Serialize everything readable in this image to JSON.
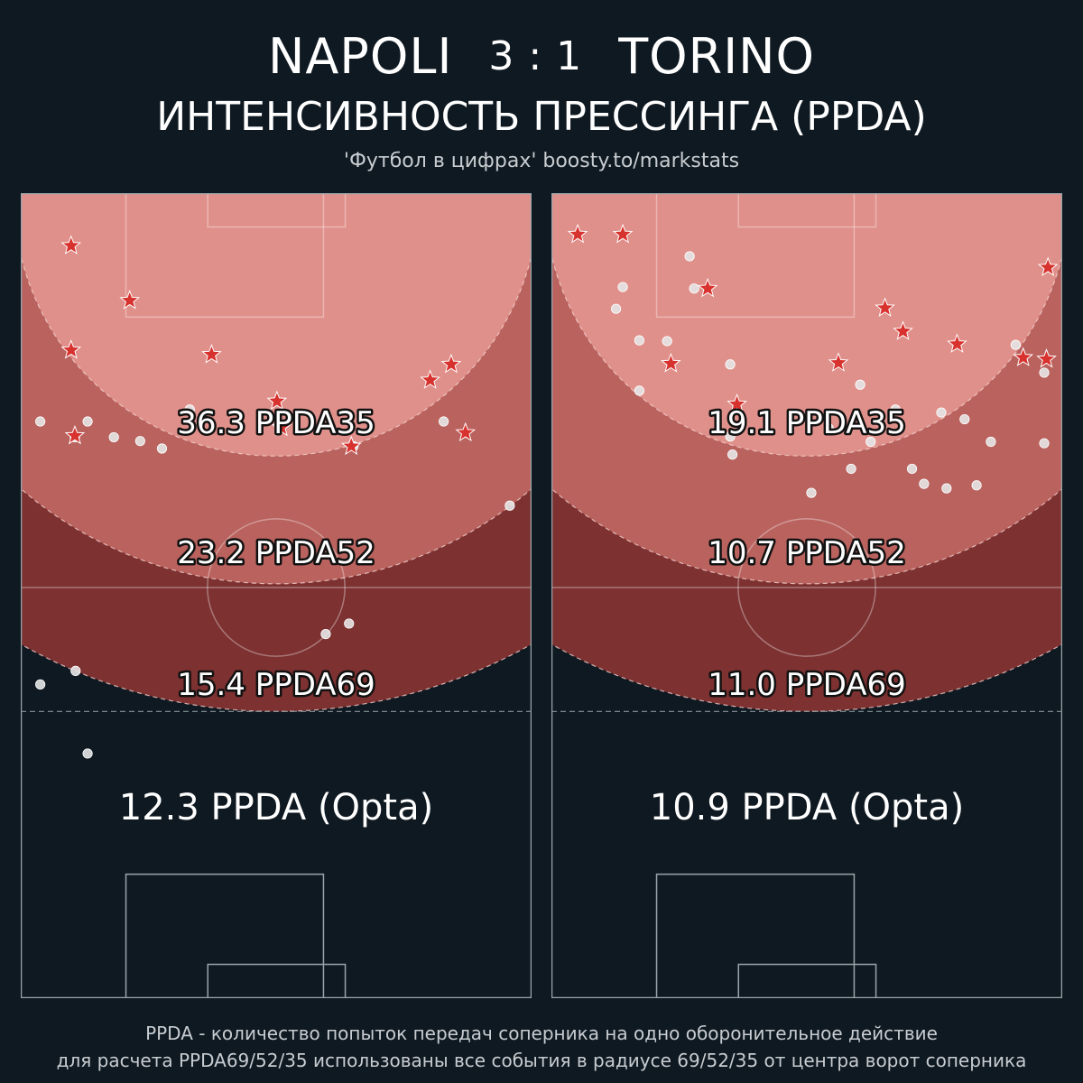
{
  "header": {
    "home_team": "NAPOLI",
    "score": "3 : 1",
    "away_team": "TORINO",
    "subtitle": "ИНТЕНСИВНОСТЬ ПРЕССИНГА (PPDA)",
    "source": "'Футбол в цифрах' boosty.to/markstats"
  },
  "footer": {
    "line1": "PPDA - количество попыток передач соперника на одно оборонительное действие",
    "line2": "для расчета PPDA69/52/35 использованы все события в радиусе 69/52/35 от центра ворот соперника"
  },
  "colors": {
    "background": "#0f1921",
    "zone35": "#e0908a",
    "zone52": "#b9625e",
    "zone69": "#7d3131",
    "star": "#d8322e",
    "dot": "#e6e6e6"
  },
  "chart_data": [
    {
      "type": "scatter",
      "team": "NAPOLI",
      "metrics": {
        "ppda35": "36.3 PPDA35",
        "ppda52": "23.2 PPDA52",
        "ppda69": "15.4 PPDA69",
        "opta": "12.3 PPDA (Opta)"
      },
      "xlim": [
        0,
        68
      ],
      "ylim": [
        0,
        105
      ],
      "stars": [
        {
          "x": 6.7,
          "y": 98.0
        },
        {
          "x": 6.7,
          "y": 84.1
        },
        {
          "x": 7.2,
          "y": 72.7
        },
        {
          "x": 14.5,
          "y": 90.7
        },
        {
          "x": 25.4,
          "y": 83.5
        },
        {
          "x": 34.1,
          "y": 77.3
        },
        {
          "x": 34.7,
          "y": 73.8
        },
        {
          "x": 44.0,
          "y": 71.3
        },
        {
          "x": 54.5,
          "y": 80.1
        },
        {
          "x": 57.3,
          "y": 82.2
        },
        {
          "x": 59.2,
          "y": 73.1
        }
      ],
      "dots": [
        {
          "x": 2.6,
          "y": 74.6
        },
        {
          "x": 8.9,
          "y": 74.6
        },
        {
          "x": 12.4,
          "y": 72.5
        },
        {
          "x": 15.9,
          "y": 72.0
        },
        {
          "x": 18.8,
          "y": 71.0
        },
        {
          "x": 22.5,
          "y": 76.2
        },
        {
          "x": 44.3,
          "y": 71.3
        },
        {
          "x": 56.3,
          "y": 74.6
        },
        {
          "x": 7.2,
          "y": 72.5
        },
        {
          "x": 2.6,
          "y": 39.6
        },
        {
          "x": 7.3,
          "y": 41.4
        },
        {
          "x": 8.9,
          "y": 30.4
        },
        {
          "x": 40.6,
          "y": 46.3
        },
        {
          "x": 43.7,
          "y": 47.7
        },
        {
          "x": 65.1,
          "y": 63.4
        }
      ]
    },
    {
      "type": "scatter",
      "team": "TORINO",
      "metrics": {
        "ppda35": "19.1 PPDA35",
        "ppda52": "10.7 PPDA52",
        "ppda69": "11.0 PPDA69",
        "opta": "10.9 PPDA (Opta)"
      },
      "xlim": [
        0,
        68
      ],
      "ylim": [
        0,
        105
      ],
      "stars": [
        {
          "x": 3.5,
          "y": 99.5
        },
        {
          "x": 9.5,
          "y": 99.5
        },
        {
          "x": 20.8,
          "y": 92.3
        },
        {
          "x": 15.9,
          "y": 82.3
        },
        {
          "x": 38.2,
          "y": 82.4
        },
        {
          "x": 44.4,
          "y": 89.7
        },
        {
          "x": 46.8,
          "y": 86.6
        },
        {
          "x": 54.0,
          "y": 84.9
        },
        {
          "x": 65.9,
          "y": 82.9
        },
        {
          "x": 62.8,
          "y": 83.1
        },
        {
          "x": 66.1,
          "y": 95.1
        },
        {
          "x": 24.7,
          "y": 76.9
        }
      ],
      "dots": [
        {
          "x": 18.4,
          "y": 96.6
        },
        {
          "x": 9.5,
          "y": 92.5
        },
        {
          "x": 19.0,
          "y": 92.3
        },
        {
          "x": 8.6,
          "y": 89.6
        },
        {
          "x": 11.7,
          "y": 85.4
        },
        {
          "x": 15.4,
          "y": 85.3
        },
        {
          "x": 23.8,
          "y": 82.2
        },
        {
          "x": 11.7,
          "y": 78.7
        },
        {
          "x": 41.1,
          "y": 79.5
        },
        {
          "x": 45.8,
          "y": 76.2
        },
        {
          "x": 51.9,
          "y": 75.8
        },
        {
          "x": 55.0,
          "y": 74.9
        },
        {
          "x": 58.5,
          "y": 71.9
        },
        {
          "x": 61.8,
          "y": 84.8
        },
        {
          "x": 65.6,
          "y": 81.1
        },
        {
          "x": 36.9,
          "y": 73.7
        },
        {
          "x": 34.6,
          "y": 65.1
        },
        {
          "x": 23.8,
          "y": 72.6
        },
        {
          "x": 39.9,
          "y": 68.3
        },
        {
          "x": 24.1,
          "y": 70.2
        },
        {
          "x": 42.5,
          "y": 71.9
        },
        {
          "x": 48.0,
          "y": 68.3
        },
        {
          "x": 49.6,
          "y": 66.3
        },
        {
          "x": 52.6,
          "y": 65.7
        },
        {
          "x": 56.6,
          "y": 66.1
        },
        {
          "x": 65.6,
          "y": 71.7
        }
      ]
    }
  ]
}
